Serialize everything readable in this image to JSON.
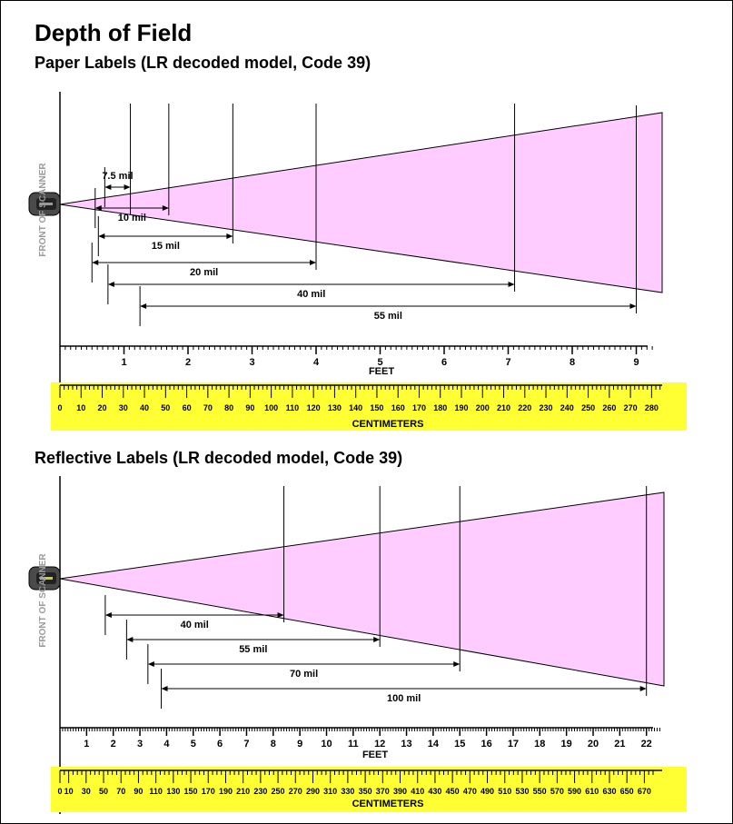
{
  "title": "Depth of Field",
  "scanner_label": "FRONT OF SCANNER",
  "feet_axis_label": "FEET",
  "cm_axis_label": "CENTIMETERS",
  "colors": {
    "cone": "#ffccff",
    "cm_band": "#ffff33",
    "scanner_label": "#9a9a9a"
  },
  "panels": [
    {
      "subtitle": "Paper Labels (LR decoded model, Code 39)",
      "feet_range": [
        0,
        9.3
      ],
      "feet_ticks": [
        "1",
        "2",
        "3",
        "4",
        "5",
        "6",
        "7",
        "8",
        "9"
      ],
      "cm_ticks": [
        "0",
        "10",
        "20",
        "30",
        "40",
        "50",
        "60",
        "70",
        "80",
        "90",
        "100",
        "110",
        "120",
        "130",
        "140",
        "150",
        "160",
        "170",
        "180",
        "190",
        "200",
        "210",
        "220",
        "230",
        "240",
        "250",
        "260",
        "270",
        "280"
      ],
      "ranges": [
        {
          "label": "7.5 mil",
          "start_ft": 0.7,
          "end_ft": 1.1
        },
        {
          "label": "10 mil",
          "start_ft": 0.55,
          "end_ft": 1.7
        },
        {
          "label": "15 mil",
          "start_ft": 0.6,
          "end_ft": 2.7
        },
        {
          "label": "20 mil",
          "start_ft": 0.5,
          "end_ft": 4.0
        },
        {
          "label": "40 mil",
          "start_ft": 0.75,
          "end_ft": 7.1
        },
        {
          "label": "55 mil",
          "start_ft": 1.25,
          "end_ft": 9.0
        }
      ]
    },
    {
      "subtitle": "Reflective Labels (LR decoded model, Code 39)",
      "feet_range": [
        0,
        22.5
      ],
      "feet_ticks": [
        "1",
        "2",
        "3",
        "4",
        "5",
        "6",
        "7",
        "8",
        "9",
        "10",
        "11",
        "12",
        "13",
        "14",
        "15",
        "16",
        "17",
        "18",
        "19",
        "20",
        "21",
        "22"
      ],
      "cm_ticks": [
        "0",
        "10",
        "30",
        "50",
        "70",
        "90",
        "110",
        "130",
        "150",
        "170",
        "190",
        "210",
        "230",
        "250",
        "270",
        "290",
        "310",
        "330",
        "350",
        "370",
        "390",
        "410",
        "430",
        "450",
        "470",
        "490",
        "510",
        "530",
        "550",
        "570",
        "590",
        "610",
        "630",
        "650",
        "670"
      ],
      "ranges": [
        {
          "label": "40 mil",
          "start_ft": 1.7,
          "end_ft": 8.4
        },
        {
          "label": "55 mil",
          "start_ft": 2.5,
          "end_ft": 12.0
        },
        {
          "label": "70 mil",
          "start_ft": 3.3,
          "end_ft": 15.0
        },
        {
          "label": "100 mil",
          "start_ft": 3.8,
          "end_ft": 22.0
        }
      ]
    }
  ]
}
